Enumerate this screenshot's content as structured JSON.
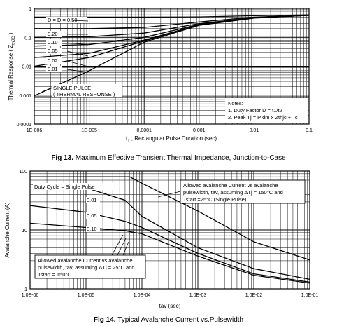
{
  "figures": {
    "fig13": {
      "number": "Fig 13.",
      "caption": "Maximum Effective Transient Thermal Impedance, Junction-to-Case"
    },
    "fig14": {
      "number": "Fig 14.",
      "caption": "Typical Avalanche Current vs.Pulsewidth"
    }
  },
  "chart_data": [
    {
      "type": "line",
      "scale": "log-log",
      "title": "",
      "xlabel_main": "t",
      "xlabel_sub": "1",
      "xlabel_rest": " , Rectangular Pulse Duration (sec)",
      "ylabel_main": "Thermal Response ( Z",
      "ylabel_sub": "thJC",
      "ylabel_end": " )",
      "xlim": [
        1e-06,
        0.1
      ],
      "ylim": [
        0.0001,
        1
      ],
      "x_ticks": [
        "1E-006",
        "1E-005",
        "0.0001",
        "0.001",
        "0.01",
        "0.1"
      ],
      "y_ticks": [
        "1",
        "0.1",
        "0.01",
        "0.001",
        "0.0001"
      ],
      "grid": true,
      "series": [
        {
          "name": "D = 0.50",
          "points": [
            [
              1e-06,
              0.5
            ],
            [
              1e-05,
              0.5
            ],
            [
              0.0001,
              0.5
            ],
            [
              0.001,
              0.51
            ],
            [
              0.01,
              0.56
            ],
            [
              0.1,
              0.6
            ]
          ]
        },
        {
          "name": "0.20",
          "points": [
            [
              1e-06,
              0.2
            ],
            [
              1e-05,
              0.2
            ],
            [
              0.0001,
              0.22
            ],
            [
              0.001,
              0.34
            ],
            [
              0.01,
              0.5
            ],
            [
              0.1,
              0.58
            ]
          ]
        },
        {
          "name": "0.10",
          "points": [
            [
              1e-06,
              0.1
            ],
            [
              1e-05,
              0.105
            ],
            [
              0.0001,
              0.14
            ],
            [
              0.001,
              0.3
            ],
            [
              0.01,
              0.48
            ],
            [
              0.1,
              0.58
            ]
          ]
        },
        {
          "name": "0.05",
          "points": [
            [
              1e-06,
              0.05
            ],
            [
              1e-05,
              0.056
            ],
            [
              0.0001,
              0.1
            ],
            [
              0.001,
              0.28
            ],
            [
              0.01,
              0.47
            ],
            [
              0.1,
              0.58
            ]
          ]
        },
        {
          "name": "0.02",
          "points": [
            [
              1e-06,
              0.02
            ],
            [
              1e-05,
              0.028
            ],
            [
              0.0001,
              0.08
            ],
            [
              0.001,
              0.27
            ],
            [
              0.01,
              0.47
            ],
            [
              0.1,
              0.58
            ]
          ]
        },
        {
          "name": "0.01",
          "points": [
            [
              1e-06,
              0.01
            ],
            [
              1e-05,
              0.02
            ],
            [
              0.0001,
              0.075
            ],
            [
              0.001,
              0.27
            ],
            [
              0.01,
              0.47
            ],
            [
              0.1,
              0.58
            ]
          ]
        },
        {
          "name": "SINGLE PULSE ( THERMAL RESPONSE )",
          "points": [
            [
              1e-06,
              0.00095
            ],
            [
              1e-05,
              0.007
            ],
            [
              0.0001,
              0.068
            ],
            [
              0.001,
              0.26
            ],
            [
              0.01,
              0.46
            ],
            [
              0.1,
              0.58
            ]
          ]
        }
      ],
      "annotations": {
        "d_prefix": "D = ",
        "single_pulse_line1": "SINGLE PULSE",
        "single_pulse_line2": "( THERMAL RESPONSE )",
        "notes_title": "Notes:",
        "note1": "1. Duty Factor D = t1/t2",
        "note2": "2. Peak Tj = P dm x Zthjc + Tc"
      }
    },
    {
      "type": "line",
      "scale": "log-log",
      "title": "",
      "xlabel": "tav (sec)",
      "ylabel": "Avalanche Current (A)",
      "xlim": [
        1e-06,
        0.1
      ],
      "ylim": [
        1,
        100
      ],
      "x_ticks": [
        "1.0E-06",
        "1.0E-05",
        "1.0E-04",
        "1.0E-03",
        "1.0E-02",
        "1.0E-01"
      ],
      "y_ticks": [
        "100",
        "10",
        "1"
      ],
      "grid": true,
      "series": [
        {
          "name": "Single Pulse",
          "points": [
            [
              1e-06,
              80
            ],
            [
              1e-05,
              80
            ],
            [
              6e-05,
              80
            ],
            [
              0.0001,
              62
            ],
            [
              0.001,
              21
            ],
            [
              0.01,
              6.3
            ],
            [
              0.1,
              3.1
            ]
          ]
        },
        {
          "name": "0.01",
          "points": [
            [
              1e-06,
              60
            ],
            [
              1e-05,
              52
            ],
            [
              5e-05,
              32
            ],
            [
              0.0001,
              17
            ],
            [
              0.001,
              5
            ],
            [
              0.01,
              2.2
            ],
            [
              0.1,
              1.45
            ]
          ]
        },
        {
          "name": "0.05",
          "points": [
            [
              1e-06,
              26
            ],
            [
              1e-05,
              20
            ],
            [
              5e-05,
              14
            ],
            [
              0.0001,
              11
            ],
            [
              0.001,
              4
            ],
            [
              0.01,
              1.8
            ],
            [
              0.1,
              1.3
            ]
          ]
        },
        {
          "name": "0.10",
          "points": [
            [
              1e-06,
              13
            ],
            [
              1e-05,
              11
            ],
            [
              5e-05,
              9.7
            ],
            [
              0.0001,
              8.6
            ],
            [
              0.001,
              3.6
            ],
            [
              0.01,
              1.7
            ],
            [
              0.1,
              1.25
            ]
          ]
        }
      ],
      "annotations": {
        "duty_cycle": "Duty Cycle = Single Pulse",
        "box1_line1": "Allowed   avalanche   Current   vs   avalanche",
        "box1_line2": "pulsewidth,  tav,  assuming  ΔTj  =  150°C and",
        "box1_line3": "Tstart =25°C (Single Pulse)",
        "box2_line1": "Allowed  avalanche  Current  vs  avalanche",
        "box2_line2": "pulsewidth,  tav,  assuming  ΔTj  =  25°C and",
        "box2_line3": "Tstart = 150°C."
      }
    }
  ]
}
